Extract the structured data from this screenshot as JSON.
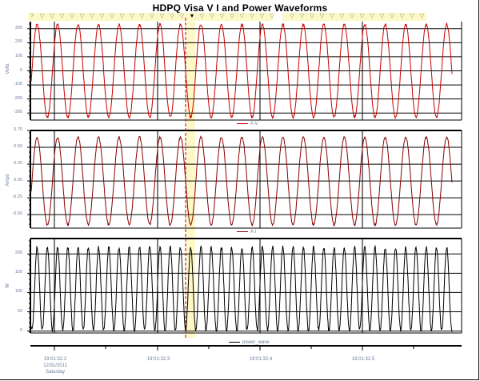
{
  "title": "HDPQ Visa V I and Power Waveforms",
  "colors": {
    "voltage": "#cc0000",
    "current": "#8b0000",
    "power": "#000000",
    "cursor": "#cc0000",
    "cursor_band": "#fdf8c8",
    "marker_band": "#fdf8c8",
    "grid": "#000000",
    "axis_text": "#6b7a99"
  },
  "markers": {
    "first_glyph": "?",
    "glyph": "▽",
    "cursor_glyph": "▼"
  },
  "panels": [
    {
      "name": "voltage",
      "ylabel": "Volts",
      "ticks": [
        "300",
        "200",
        "100",
        "0",
        "-100",
        "-200",
        "-300"
      ],
      "legend": "A V"
    },
    {
      "name": "current",
      "ylabel": "Amps",
      "ticks": [
        "0.75",
        "0.50",
        "0.25",
        "0.00",
        "-0.25",
        "-0.50"
      ],
      "legend": "A I"
    },
    {
      "name": "power",
      "ylabel": "W",
      "ticks": [
        "200",
        "150",
        "100",
        "50",
        "0"
      ],
      "legend": "power_wave"
    }
  ],
  "xaxis": {
    "ticks": [
      {
        "label": "19:01:32.2",
        "sub1": "12/31/2011",
        "sub2": "Saturday"
      },
      {
        "label": "19:01:32.3"
      },
      {
        "label": "19:01:32.4"
      },
      {
        "label": "19:01:32.5"
      }
    ]
  },
  "chart_data": [
    {
      "type": "line",
      "title": "HDPQ Visa V I and Power Waveforms",
      "series": [
        {
          "name": "A V",
          "description": "sinusoidal voltage, ~±330 V peak, ~21 cycles across window"
        }
      ],
      "ylabel": "Volts",
      "ylim": [
        -350,
        350
      ],
      "yticks": [
        300,
        200,
        100,
        0,
        -100,
        -200,
        -300
      ],
      "xlabel": "",
      "xticks": [
        "19:01:32.2",
        "19:01:32.3",
        "19:01:32.4",
        "19:01:32.5"
      ],
      "amplitude": 330,
      "cycles_per_0.1s": 6,
      "legend_position": "bottom-center",
      "grid": true
    },
    {
      "type": "line",
      "series": [
        {
          "name": "A I",
          "description": "sinusoidal current, ~±0.65 A peak, in phase with voltage"
        }
      ],
      "ylabel": "Amps",
      "ylim": [
        -0.7,
        0.75
      ],
      "yticks": [
        0.75,
        0.5,
        0.25,
        0.0,
        -0.25,
        -0.5
      ],
      "amplitude": 0.65,
      "cycles_per_0.1s": 6,
      "legend_position": "bottom-center",
      "grid": true
    },
    {
      "type": "line",
      "series": [
        {
          "name": "power_wave",
          "description": "instantaneous power, 0 to ~215 W, double frequency of V/I"
        }
      ],
      "ylabel": "W",
      "ylim": [
        -5,
        240
      ],
      "yticks": [
        200,
        150,
        100,
        50,
        0
      ],
      "peak": 215,
      "cycles_per_0.1s": 12,
      "legend_position": "bottom-center",
      "grid": true
    }
  ]
}
